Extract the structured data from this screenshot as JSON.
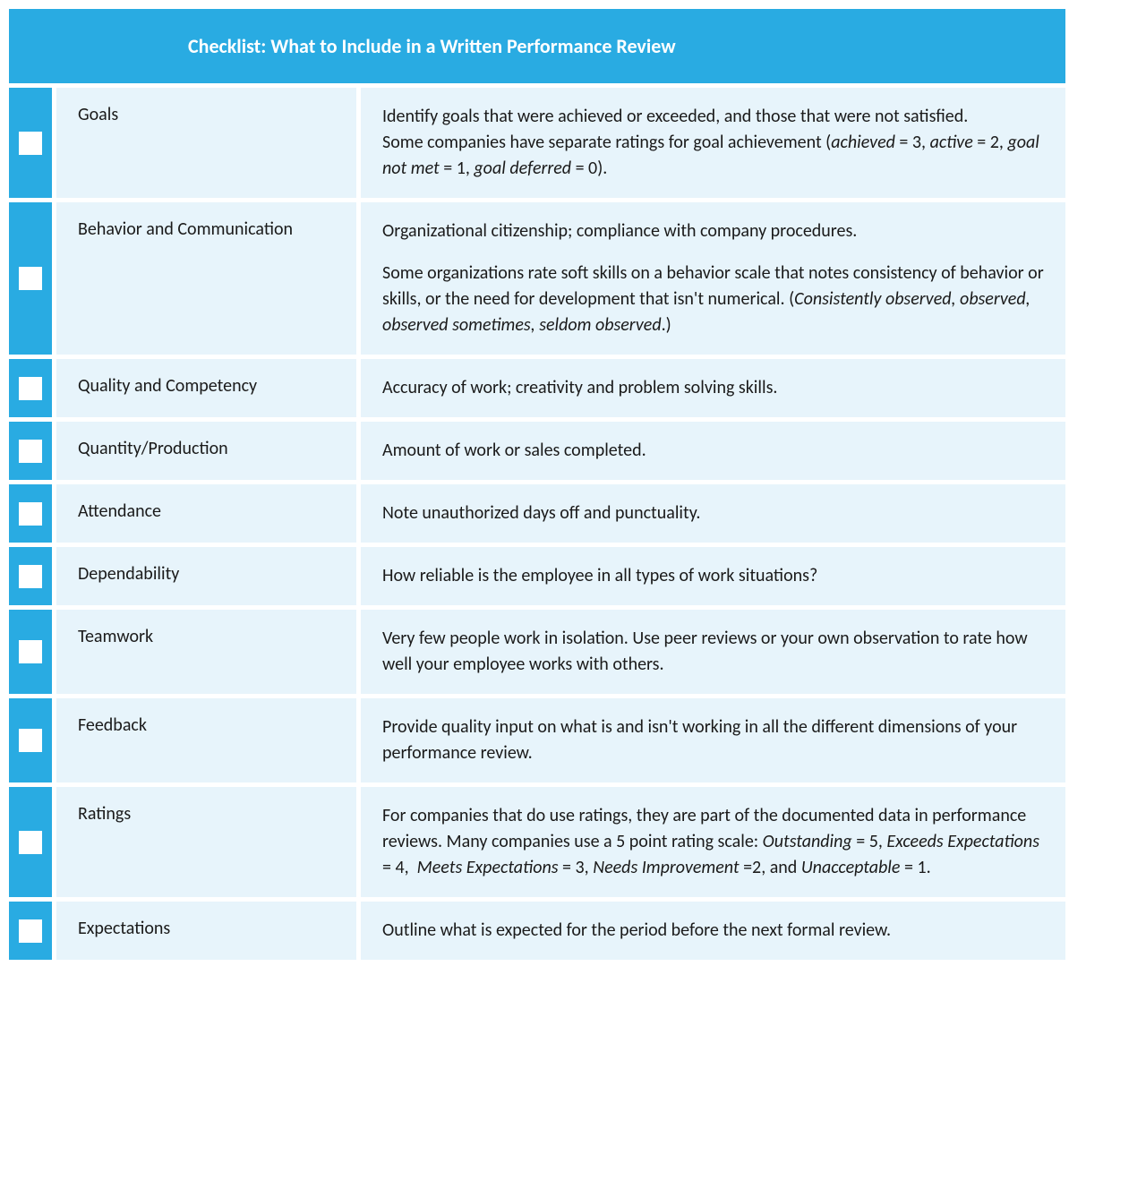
{
  "colors": {
    "accent": "#29abe2",
    "row_bg": "#e7f4fb",
    "text": "#1a1a1a",
    "white": "#ffffff"
  },
  "typography": {
    "family": "Calibri",
    "header_fontsize": 22,
    "body_fontsize": 20
  },
  "header": {
    "title": "Checklist: What to Include in a Written Performance Review"
  },
  "rows": [
    {
      "label": "Goals",
      "desc_html": "Identify goals that were achieved or exceeded, and those that were not satisfied.<br>Some companies have separate ratings for goal achievement (<em>achieved</em> = 3, <em>active</em> = 2, <em>goal not met</em> = 1, <em>goal deferred</em> = 0)."
    },
    {
      "label": "Behavior and Communication",
      "desc_html": "<p>Organizational citizenship; compliance with company procedures.</p><p class=\"spaced\">Some organizations rate soft skills on a behavior scale that notes consistency of behavior or skills, or the need for development that isn't numerical. (<em>Consistently observed, observed, observed sometimes, seldom observed</em>.)</p>"
    },
    {
      "label": "Quality and Competency",
      "desc_html": "Accuracy of work; creativity and problem solving skills."
    },
    {
      "label": "Quantity/Production",
      "desc_html": "Amount of work or sales completed."
    },
    {
      "label": "Attendance",
      "desc_html": "Note unauthorized days off and punctuality."
    },
    {
      "label": "Dependability",
      "desc_html": "How reliable is the employee in all types of work situations?"
    },
    {
      "label": "Teamwork",
      "desc_html": "Very few people work in isolation. Use peer reviews or your own observation to rate how well your employee works with others."
    },
    {
      "label": "Feedback",
      "desc_html": "Provide quality input on what is and isn't working in all the different dimensions of your performance review."
    },
    {
      "label": "Ratings",
      "desc_html": "For companies that do use ratings, they are part of the documented data in performance reviews. Many companies use a 5 point rating scale: <em>Outstanding</em> = 5, <em>Exceeds Expectations</em> = 4,&nbsp; <em>Meets Expectations</em> = 3, <em>Needs Improvement</em> =2, and <em>Unacceptable</em> = 1."
    },
    {
      "label": "Expectations",
      "desc_html": "Outline what is expected for the period before the next formal review."
    }
  ]
}
